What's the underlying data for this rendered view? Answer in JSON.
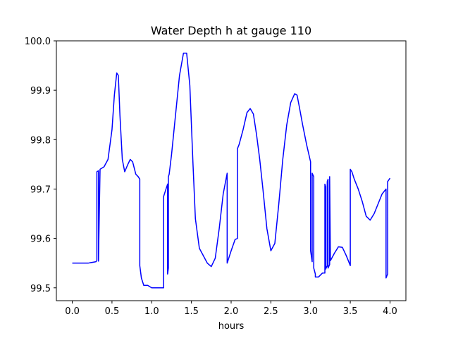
{
  "chart_data": {
    "type": "line",
    "title": "Water Depth h at gauge 110",
    "xlabel": "hours",
    "ylabel": "",
    "xlim": [
      -0.2,
      4.2
    ],
    "ylim": [
      99.474,
      100.0
    ],
    "xticks": [
      0.0,
      0.5,
      1.0,
      1.5,
      2.0,
      2.5,
      3.0,
      3.5,
      4.0
    ],
    "xtick_labels": [
      "0.0",
      "0.5",
      "1.0",
      "1.5",
      "2.0",
      "2.5",
      "3.0",
      "3.5",
      "4.0"
    ],
    "yticks": [
      99.5,
      99.6,
      99.7,
      99.8,
      99.9,
      100.0
    ],
    "ytick_labels": [
      "99.5",
      "99.6",
      "99.7",
      "99.8",
      "99.9",
      "100.0"
    ],
    "grid": false,
    "legend": "none",
    "series": [
      {
        "name": "",
        "color": "#0000ff",
        "x": [
          0.0,
          0.2,
          0.3,
          0.31,
          0.31,
          0.33,
          0.33,
          0.35,
          0.4,
          0.45,
          0.5,
          0.53,
          0.56,
          0.58,
          0.6,
          0.63,
          0.66,
          0.7,
          0.73,
          0.76,
          0.8,
          0.83,
          0.85,
          0.85,
          0.87,
          0.9,
          0.95,
          1.0,
          1.05,
          1.1,
          1.15,
          1.15,
          1.2,
          1.2,
          1.21,
          1.21,
          1.22,
          1.22,
          1.25,
          1.3,
          1.35,
          1.4,
          1.44,
          1.48,
          1.52,
          1.55,
          1.6,
          1.65,
          1.7,
          1.75,
          1.8,
          1.85,
          1.9,
          1.95,
          1.95,
          1.97,
          2.0,
          2.05,
          2.08,
          2.08,
          2.1,
          2.15,
          2.2,
          2.24,
          2.28,
          2.32,
          2.36,
          2.4,
          2.45,
          2.5,
          2.55,
          2.6,
          2.65,
          2.7,
          2.75,
          2.8,
          2.83,
          2.86,
          2.9,
          2.95,
          3.0,
          3.0,
          3.02,
          3.02,
          3.04,
          3.04,
          3.06,
          3.06,
          3.1,
          3.15,
          3.18,
          3.18,
          3.19,
          3.19,
          3.21,
          3.21,
          3.22,
          3.22,
          3.24,
          3.24,
          3.25,
          3.3,
          3.35,
          3.4,
          3.45,
          3.5,
          3.5,
          3.52,
          3.55,
          3.6,
          3.65,
          3.7,
          3.75,
          3.8,
          3.85,
          3.9,
          3.95,
          3.95,
          3.97,
          3.97,
          4.0
        ],
        "y": [
          99.55,
          99.55,
          99.553,
          99.555,
          99.735,
          99.737,
          99.554,
          99.74,
          99.745,
          99.76,
          99.82,
          99.89,
          99.935,
          99.93,
          99.85,
          99.76,
          99.735,
          99.75,
          99.76,
          99.755,
          99.73,
          99.725,
          99.72,
          99.545,
          99.52,
          99.505,
          99.505,
          99.5,
          99.5,
          99.5,
          99.5,
          99.685,
          99.71,
          99.528,
          99.54,
          99.725,
          99.73,
          99.73,
          99.77,
          99.85,
          99.93,
          99.975,
          99.975,
          99.91,
          99.75,
          99.64,
          99.58,
          99.565,
          99.55,
          99.543,
          99.56,
          99.62,
          99.69,
          99.732,
          99.55,
          99.56,
          99.575,
          99.598,
          99.6,
          99.782,
          99.79,
          99.82,
          99.855,
          99.863,
          99.852,
          99.81,
          99.76,
          99.7,
          99.62,
          99.575,
          99.59,
          99.67,
          99.76,
          99.83,
          99.875,
          99.893,
          99.89,
          99.865,
          99.83,
          99.79,
          99.755,
          99.575,
          99.553,
          99.732,
          99.725,
          99.54,
          99.528,
          99.522,
          99.522,
          99.53,
          99.53,
          99.71,
          99.705,
          99.538,
          99.545,
          99.715,
          99.72,
          99.54,
          99.547,
          99.725,
          99.555,
          99.57,
          99.583,
          99.582,
          99.565,
          99.545,
          99.74,
          99.735,
          99.72,
          99.7,
          99.675,
          99.645,
          99.637,
          99.65,
          99.67,
          99.69,
          99.7,
          99.52,
          99.528,
          99.715,
          99.722
        ]
      }
    ]
  }
}
